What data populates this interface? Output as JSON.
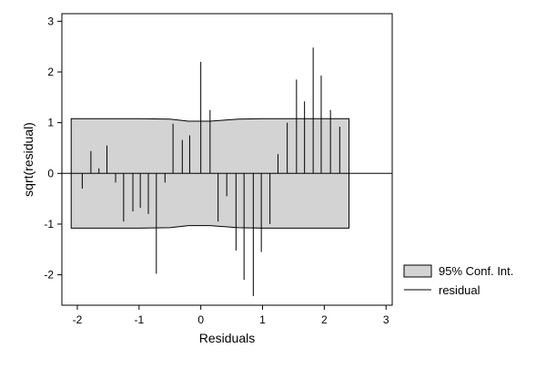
{
  "chart_data": {
    "type": "spike",
    "xlabel": "Residuals",
    "ylabel": "sqrt(residual)",
    "xlim": [
      -2.25,
      3.1
    ],
    "ylim": [
      -2.6,
      3.15
    ],
    "x_ticks": [
      -2,
      -1,
      0,
      1,
      2,
      3
    ],
    "y_ticks": [
      -2,
      -1,
      0,
      1,
      2,
      3
    ],
    "x_tick_labels": [
      "-2",
      "-1",
      "0",
      "1",
      "2",
      "3"
    ],
    "y_tick_labels": [
      "-2",
      "-1",
      "0",
      "1",
      "2",
      "3"
    ],
    "reference_line_y": 0,
    "legend": {
      "placement": "outside-bottom-right",
      "entries": [
        {
          "label": "95% Conf. Int.",
          "kind": "area"
        },
        {
          "label": "residual",
          "kind": "line"
        }
      ]
    },
    "conf_int": {
      "x": [
        -2.1,
        -1.0,
        -0.5,
        -0.2,
        0.15,
        0.6,
        1.0,
        1.5,
        2.0,
        2.4
      ],
      "upper": [
        1.08,
        1.08,
        1.07,
        1.03,
        1.03,
        1.07,
        1.08,
        1.08,
        1.08,
        1.08
      ],
      "lower": [
        -1.08,
        -1.08,
        -1.07,
        -1.03,
        -1.03,
        -1.07,
        -1.08,
        -1.08,
        -1.08,
        -1.08
      ]
    },
    "spikes": [
      {
        "x": -1.92,
        "y": -0.3
      },
      {
        "x": -1.78,
        "y": 0.44
      },
      {
        "x": -1.65,
        "y": 0.1
      },
      {
        "x": -1.52,
        "y": 0.55
      },
      {
        "x": -1.38,
        "y": -0.18
      },
      {
        "x": -1.25,
        "y": -0.95
      },
      {
        "x": -1.1,
        "y": -0.75
      },
      {
        "x": -0.98,
        "y": -0.68
      },
      {
        "x": -0.85,
        "y": -0.8
      },
      {
        "x": -0.72,
        "y": -1.98
      },
      {
        "x": -0.58,
        "y": -0.18
      },
      {
        "x": -0.45,
        "y": 0.98
      },
      {
        "x": -0.3,
        "y": 0.66
      },
      {
        "x": -0.18,
        "y": 0.75
      },
      {
        "x": 0.0,
        "y": 2.2
      },
      {
        "x": 0.15,
        "y": 1.25
      },
      {
        "x": 0.28,
        "y": -0.95
      },
      {
        "x": 0.42,
        "y": -0.45
      },
      {
        "x": 0.57,
        "y": -1.52
      },
      {
        "x": 0.7,
        "y": -2.1
      },
      {
        "x": 0.85,
        "y": -2.42
      },
      {
        "x": 0.98,
        "y": -1.55
      },
      {
        "x": 1.12,
        "y": -1.0
      },
      {
        "x": 1.25,
        "y": 0.38
      },
      {
        "x": 1.4,
        "y": 1.0
      },
      {
        "x": 1.55,
        "y": 1.85
      },
      {
        "x": 1.68,
        "y": 1.42
      },
      {
        "x": 1.82,
        "y": 2.48
      },
      {
        "x": 1.95,
        "y": 1.93
      },
      {
        "x": 2.1,
        "y": 1.25
      },
      {
        "x": 2.25,
        "y": 0.92
      }
    ],
    "colors": {
      "band_fill": "#d3d3d3",
      "band_stroke": "#000000",
      "spike": "#000000",
      "frame": "#000000"
    }
  }
}
